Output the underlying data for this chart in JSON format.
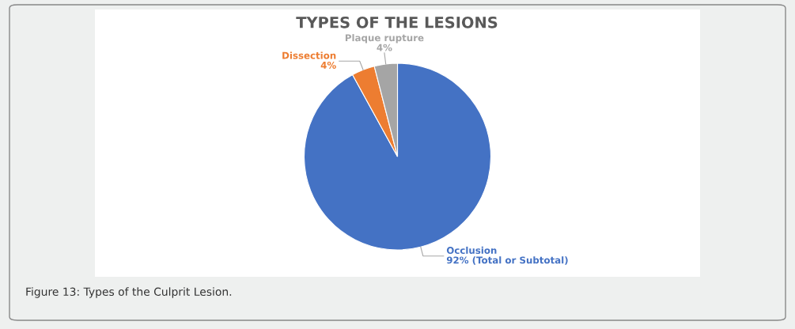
{
  "chart_data": {
    "type": "pie",
    "title": "TYPES OF THE LESIONS",
    "categories": [
      "Occlusion",
      "Dissection",
      "Plaque rupture"
    ],
    "values": [
      92,
      4,
      4
    ],
    "colors": [
      "#4472c4",
      "#ed7d31",
      "#a5a5a5"
    ],
    "value_labels": [
      "92% (Total or Subtotal)",
      "4%",
      "4%"
    ],
    "legend": false,
    "annotations": [
      "Figure 13: Types of the Culprit Lesion."
    ]
  }
}
